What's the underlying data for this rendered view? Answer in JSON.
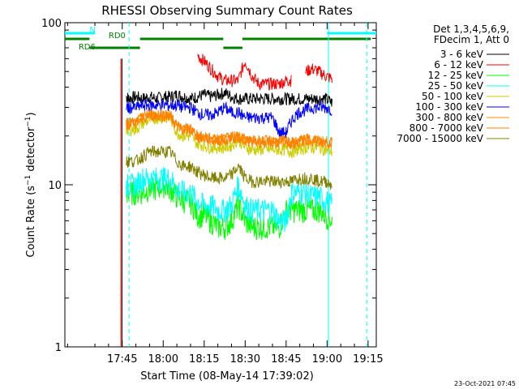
{
  "chart_data": {
    "type": "line",
    "title": "RHESSI Observing Summary Count Rates",
    "xlabel": "Start Time (08-May-14 17:39:02)",
    "ylabel": "Count Rate (s⁻¹ detector⁻¹)",
    "ylabel_main": "Count Rate (s",
    "ylabel_sup": "−1",
    "ylabel_tail": " detector",
    "ylabel_sup2": "−1",
    "ylabel_end": ")",
    "y_scale": "log",
    "ylim": [
      1,
      100
    ],
    "yticks": [
      "100",
      "10",
      "1"
    ],
    "xlim_minutes": [
      -21,
      93
    ],
    "xticks": [
      "17:45",
      "18:00",
      "18:15",
      "18:30",
      "18:45",
      "19:00",
      "19:15"
    ],
    "x_minutes": [
      0,
      1.5,
      2.5,
      5,
      7.5,
      10,
      12.5,
      15,
      17.5,
      20,
      22.5,
      25,
      27.5,
      30,
      32.5,
      35,
      37.5,
      40,
      42.5,
      45,
      47.5,
      50,
      52.5,
      55,
      57.5,
      60,
      62,
      64.5,
      67,
      69.5,
      72,
      74.5,
      77
    ],
    "legend": {
      "header": [
        "Det 1,3,4,5,6,9,",
        "FDecim 1, Att 0"
      ],
      "placement": "right"
    },
    "series": [
      {
        "name": "3 - 6 keV",
        "color": "#000000",
        "values": [
          60,
          35,
          34,
          35,
          34,
          35,
          34,
          35,
          35,
          36,
          35,
          34,
          35,
          36,
          35,
          36,
          37,
          35,
          34,
          34,
          34,
          34,
          34,
          34,
          34,
          34,
          34,
          34,
          34,
          34,
          34,
          34,
          32
        ]
      },
      {
        "name": "6 - 12 keV",
        "color": "#ff0000",
        "values": [
          60,
          null,
          null,
          null,
          null,
          null,
          null,
          null,
          null,
          null,
          null,
          null,
          63,
          58,
          52,
          47,
          44,
          44,
          44,
          58,
          47,
          42,
          42,
          42,
          42,
          44,
          44,
          null,
          50,
          52,
          50,
          47,
          45
        ]
      },
      {
        "name": "12 - 25 keV",
        "color": "#00ff00",
        "values": [
          60,
          9,
          9,
          9,
          9,
          9.5,
          9.5,
          10,
          9.5,
          8.5,
          8,
          8,
          6.5,
          6.5,
          6,
          5.5,
          5.5,
          6,
          7.5,
          6,
          5.5,
          5.5,
          5.5,
          5.5,
          5.5,
          7,
          7,
          7,
          7,
          7,
          7,
          6.5,
          6
        ]
      },
      {
        "name": "25 - 50 keV",
        "color": "#00ffff",
        "values": [
          60,
          10,
          10,
          10,
          11,
          11,
          11,
          11,
          11,
          9.5,
          9,
          9,
          8,
          7.5,
          7.5,
          7,
          7,
          7.5,
          10,
          7.5,
          7,
          7,
          7,
          7,
          6,
          6,
          9,
          9,
          9,
          8.5,
          8.5,
          8,
          7.5
        ]
      },
      {
        "name": "50 - 100 keV",
        "color": "#cccc00",
        "values": [
          60,
          22,
          22,
          22,
          24,
          25,
          26,
          26,
          26,
          21,
          20,
          20,
          18,
          17.5,
          17,
          17,
          17,
          17.5,
          19,
          17,
          16.5,
          16.5,
          16.5,
          16.5,
          16.5,
          16.5,
          16,
          16.5,
          17,
          17,
          17,
          16.5,
          16
        ]
      },
      {
        "name": "100 - 300 keV",
        "color": "#0000ff",
        "values": [
          60,
          30,
          30,
          30,
          31,
          31,
          31,
          31,
          31,
          31,
          30,
          30,
          28,
          27,
          27,
          28,
          30,
          28,
          28,
          26,
          26,
          26,
          26,
          26,
          21,
          21,
          25,
          28,
          29,
          30,
          30,
          30,
          29
        ]
      },
      {
        "name": "300 - 800 keV",
        "color": "#ff8c00",
        "values": [
          60,
          24,
          24,
          24,
          26,
          27,
          27,
          27,
          27,
          23,
          22,
          22,
          20,
          19.5,
          19,
          19,
          19,
          19.5,
          20,
          19,
          18.5,
          18.5,
          18.5,
          18.5,
          18.5,
          18.5,
          18,
          18.5,
          19,
          19,
          18.5,
          18.5,
          18
        ]
      },
      {
        "name": "800 - 7000 keV",
        "color": "#ff8000",
        "values": [
          60,
          24,
          24,
          24,
          26,
          27,
          27,
          27,
          27,
          23,
          22,
          22,
          20,
          19.5,
          19,
          19,
          19,
          19.5,
          20,
          19,
          18.5,
          18.5,
          18.5,
          18.5,
          18.5,
          18.5,
          18,
          18.5,
          19,
          19,
          18.5,
          18.5,
          18
        ]
      },
      {
        "name": "7000 - 15000 keV",
        "color": "#808000",
        "values": [
          60,
          14,
          14,
          14,
          15,
          16,
          16,
          16,
          16,
          14,
          13,
          13,
          12,
          11.5,
          11,
          11,
          11,
          11.5,
          13,
          11,
          10.5,
          10.5,
          10.5,
          10.5,
          10.5,
          10.5,
          10.5,
          11,
          11,
          11,
          10.5,
          10.5,
          10
        ]
      }
    ],
    "status_bars": [
      {
        "label": "N",
        "color": "#00ffff",
        "segments": [
          [
            -21,
            -10
          ],
          [
            75,
            93
          ]
        ]
      },
      {
        "label": "RD0",
        "color": "#008000",
        "segments": [
          [
            -21,
            -12
          ],
          [
            6.5,
            37
          ],
          [
            44,
            91
          ]
        ]
      },
      {
        "label": "RD6",
        "color": "#008000",
        "segments": [
          [
            -12,
            6.5
          ],
          [
            37,
            44
          ]
        ]
      }
    ],
    "vlines": [
      {
        "x": -0.5,
        "color": "#ff0000",
        "style": "solid"
      },
      {
        "x": -0.1,
        "color": "#000000",
        "style": "solid"
      },
      {
        "x": 2.5,
        "color": "#00ffff",
        "style": "dashed"
      },
      {
        "x": 75.5,
        "color": "#00ffff",
        "style": "solid"
      },
      {
        "x": 89.5,
        "color": "#00ffff",
        "style": "dashed"
      }
    ]
  },
  "footer": {
    "timestamp": "23-Oct-2021 07:45"
  }
}
